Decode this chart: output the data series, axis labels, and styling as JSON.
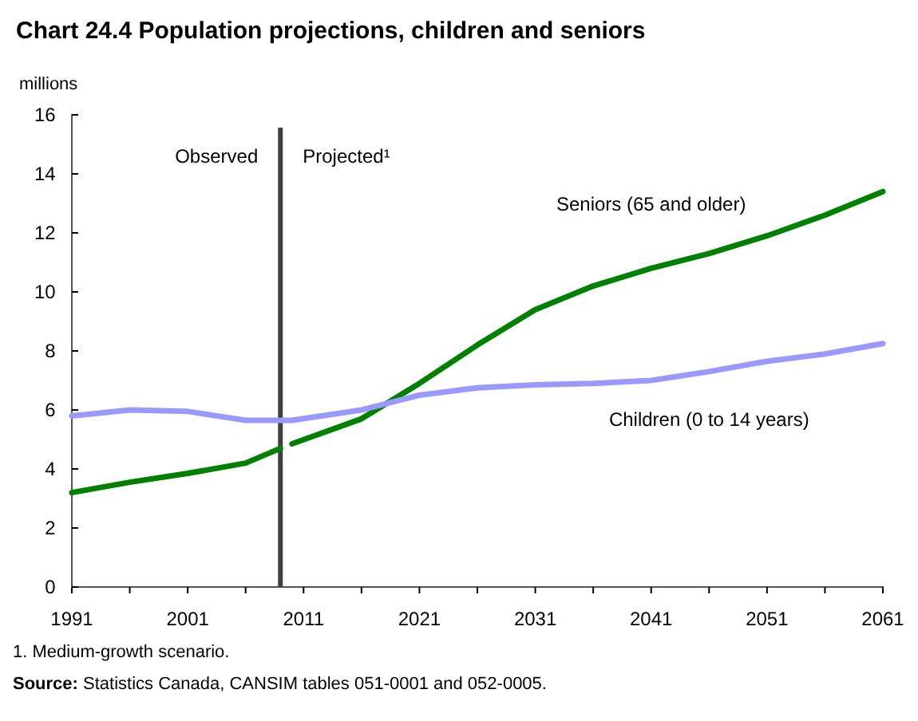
{
  "chart_data": {
    "type": "line",
    "title": "Chart 24.4 Population projections, children and seniors",
    "ylabel": "millions",
    "xlim": [
      1991,
      2061
    ],
    "xticks": [
      1991,
      {
        "value": 1996,
        "label": null
      },
      2001,
      {
        "value": 2006,
        "label": null
      },
      2011,
      {
        "value": 2016,
        "label": null
      },
      2021,
      {
        "value": 2026,
        "label": null
      },
      2031,
      {
        "value": 2036,
        "label": null
      },
      2041,
      {
        "value": 2046,
        "label": null
      },
      2051,
      {
        "value": 2056,
        "label": null
      },
      2061
    ],
    "ylim": [
      0,
      16
    ],
    "yticks": [
      0,
      2,
      4,
      6,
      8,
      10,
      12,
      14,
      16
    ],
    "grid": false,
    "series": [
      {
        "name": "Seniors (65 and older)",
        "color": "#008000",
        "x": [
          1991,
          1996,
          2001,
          2006,
          2009,
          2009.5,
          2010,
          2016,
          2021,
          2026,
          2031,
          2036,
          2041,
          2046,
          2051,
          2056,
          2061
        ],
        "values": [
          3.2,
          3.55,
          3.85,
          4.2,
          4.7,
          null,
          4.85,
          5.7,
          6.9,
          8.2,
          9.4,
          10.2,
          10.8,
          11.3,
          11.9,
          12.6,
          13.4
        ]
      },
      {
        "name": "Children (0 to 14 years)",
        "color": "#9999ff",
        "x": [
          1991,
          1996,
          2001,
          2006,
          2009,
          2010,
          2016,
          2021,
          2026,
          2031,
          2036,
          2041,
          2046,
          2051,
          2056,
          2061
        ],
        "values": [
          5.8,
          6.0,
          5.95,
          5.65,
          5.65,
          5.65,
          6.0,
          6.5,
          6.75,
          6.85,
          6.9,
          7.0,
          7.3,
          7.65,
          7.9,
          8.25
        ]
      }
    ],
    "ref_lines": [
      {
        "axis": "x",
        "value": 2009,
        "color": "#404040"
      }
    ],
    "annotations": [
      "Observed",
      "Projected¹",
      "1. Medium-growth scenario.",
      "Source: Statistics Canada, CANSIM tables 051-0001 and 052-0005."
    ]
  }
}
